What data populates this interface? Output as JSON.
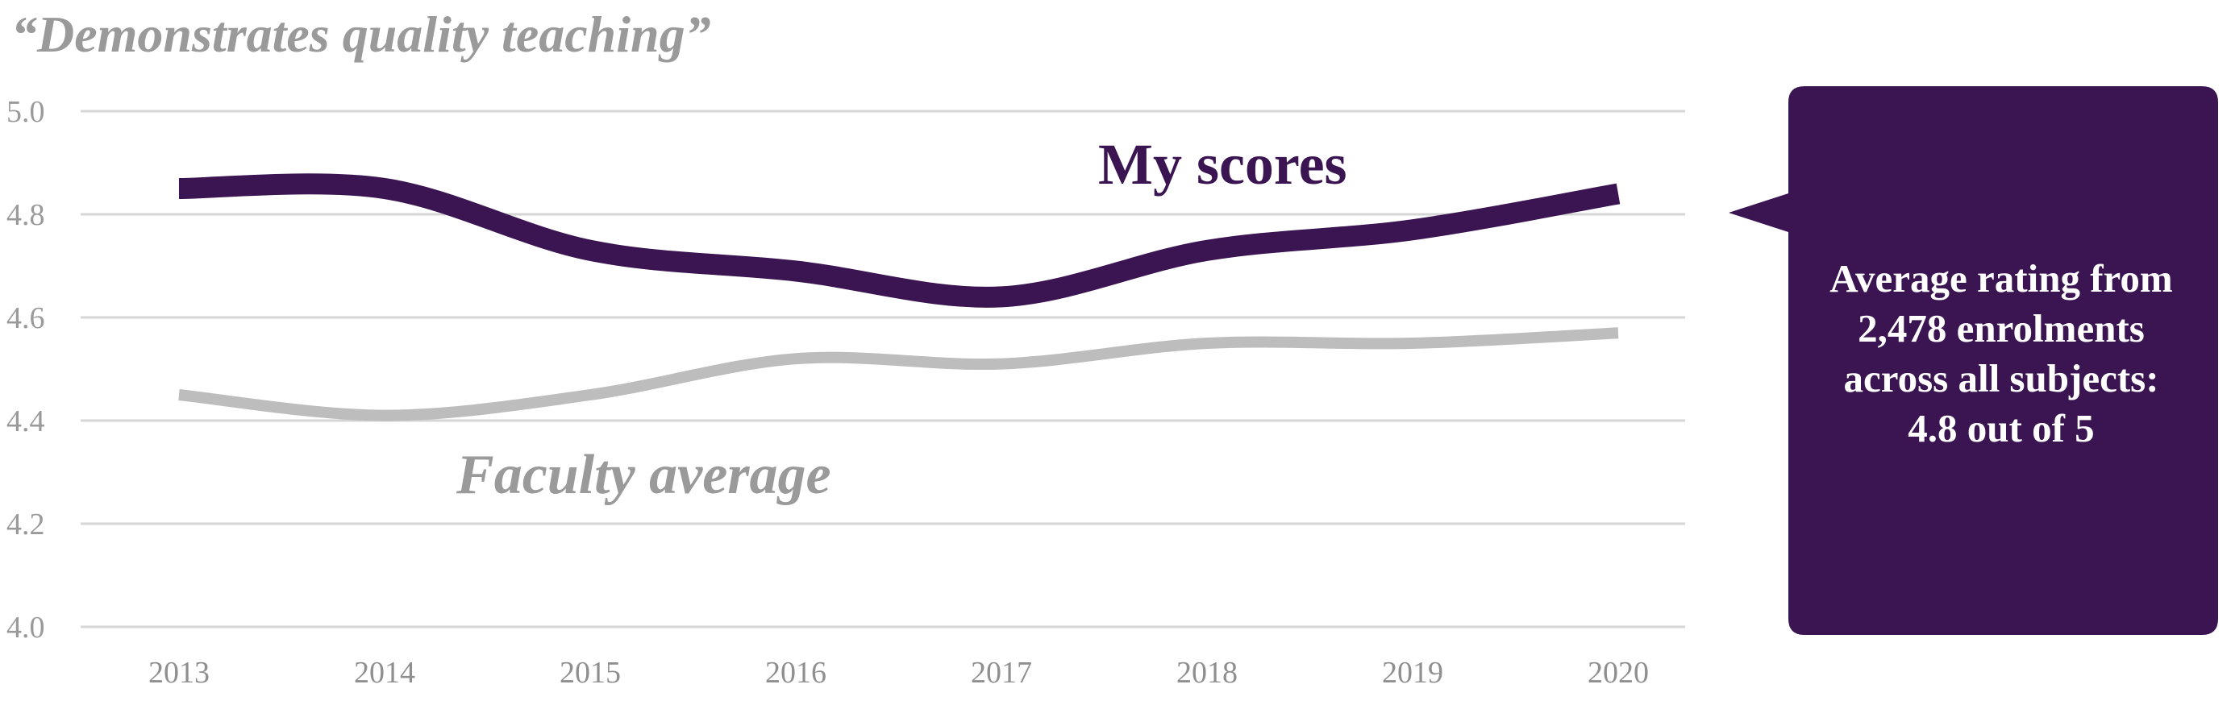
{
  "title": "“Demonstrates quality teaching”",
  "chart_data": {
    "type": "line",
    "categories": [
      "2013",
      "2014",
      "2015",
      "2016",
      "2017",
      "2018",
      "2019",
      "2020"
    ],
    "y_ticks": [
      "4.0",
      "4.2",
      "4.4",
      "4.6",
      "4.8",
      "5.0"
    ],
    "ylim": [
      4.0,
      5.0
    ],
    "grid": true,
    "series": [
      {
        "name": "My scores",
        "values": [
          4.85,
          4.85,
          4.73,
          4.69,
          4.64,
          4.73,
          4.77,
          4.84
        ],
        "color": "#3b1452"
      },
      {
        "name": "Faculty average",
        "values": [
          4.45,
          4.41,
          4.45,
          4.52,
          4.51,
          4.55,
          4.55,
          4.57
        ],
        "color": "#bdbdbd"
      }
    ]
  },
  "callout": {
    "text": "Average rating from\n2,478 enrolments\nacross all subjects:\n4.8 out of 5",
    "color": "#3b1452"
  }
}
